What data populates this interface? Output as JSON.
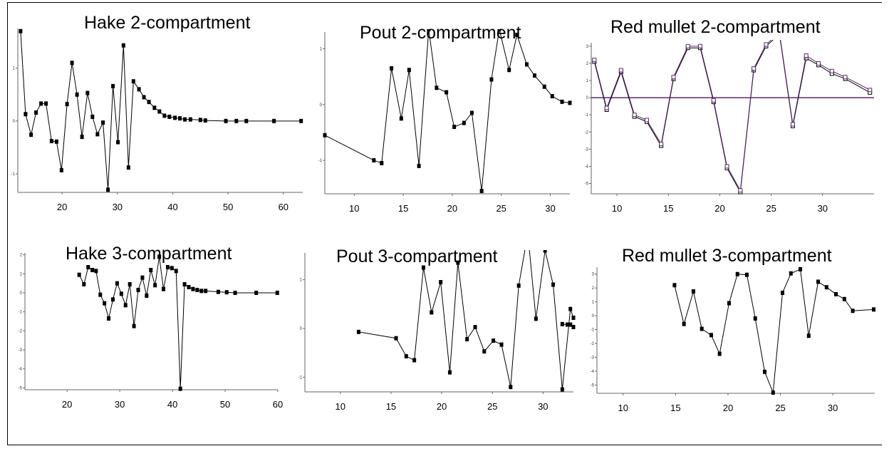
{
  "chart_data": [
    {
      "type": "line",
      "title": "Hake 2-compartment",
      "xticks": [
        20,
        30,
        40,
        50,
        60
      ],
      "yticks": [
        -1,
        0,
        1
      ],
      "xlim": [
        12,
        63.5
      ],
      "ylim": [
        -1.35,
        1.75
      ],
      "marker": "filled-square",
      "series": [
        {
          "x": [
            12.5,
            13.4,
            14.4,
            15.3,
            16.2,
            17.1,
            18.1,
            19.0,
            19.9,
            20.9,
            21.8,
            22.7,
            23.6,
            24.6,
            25.5,
            26.4,
            27.4,
            28.3,
            29.2,
            30.1,
            31.1,
            32.0,
            32.9,
            33.9,
            34.8,
            35.7,
            36.7,
            37.6,
            38.5,
            39.4,
            40.4,
            41.3,
            42.2,
            43.2,
            45.0,
            45.9,
            49.6,
            51.5,
            53.3,
            58.3,
            63.2
          ],
          "y": [
            1.7,
            0.13,
            -0.26,
            0.16,
            0.33,
            0.33,
            -0.38,
            -0.39,
            -0.93,
            0.32,
            1.1,
            0.5,
            -0.3,
            0.53,
            0.08,
            -0.25,
            -0.03,
            -1.3,
            0.66,
            -0.4,
            1.43,
            -0.88,
            0.75,
            0.6,
            0.45,
            0.36,
            0.25,
            0.18,
            0.1,
            0.08,
            0.06,
            0.05,
            0.03,
            0.03,
            0.02,
            0.01,
            0.0,
            0.0,
            0.0,
            0.0,
            0.0
          ]
        }
      ]
    },
    {
      "type": "line",
      "title": "Pout 2-compartment",
      "xticks": [
        10,
        15,
        20,
        25,
        30
      ],
      "yticks": [
        -1,
        0,
        1
      ],
      "xlim": [
        7,
        32
      ],
      "ylim": [
        -1.6,
        1.3
      ],
      "marker": "filled-square",
      "series": [
        {
          "x": [
            7.0,
            12.0,
            12.8,
            13.8,
            14.8,
            15.6,
            16.6,
            17.6,
            18.4,
            19.4,
            20.2,
            21.2,
            22.0,
            23.0,
            24.0,
            24.8,
            25.8,
            26.6,
            27.6,
            28.4,
            29.4,
            30.2,
            31.2,
            32.0
          ],
          "y": [
            -0.55,
            -1.0,
            -1.05,
            0.65,
            -0.25,
            0.62,
            -1.1,
            1.35,
            0.3,
            0.22,
            -0.4,
            -0.33,
            -0.15,
            -1.55,
            0.45,
            1.35,
            0.62,
            1.25,
            0.72,
            0.52,
            0.32,
            0.15,
            0.05,
            0.03
          ]
        }
      ]
    },
    {
      "type": "line",
      "title": "Red mullet 2-compartment",
      "xticks": [
        10,
        15,
        20,
        25,
        30
      ],
      "yticks": [
        -5,
        -4,
        -3,
        -2,
        -1,
        0,
        1,
        2,
        3
      ],
      "xlim": [
        7.5,
        35
      ],
      "ylim": [
        -5.6,
        3.2
      ],
      "marker": "open-square",
      "series": [
        {
          "x": [
            7.8,
            9.0,
            10.4,
            11.7,
            12.9,
            14.3,
            15.5,
            16.9,
            18.1,
            19.4,
            20.7,
            22.0,
            23.3,
            24.5,
            25.8,
            27.1,
            28.4,
            29.6,
            30.9,
            32.2,
            34.6
          ],
          "y": [
            2.1,
            -0.7,
            1.5,
            -1.1,
            -1.4,
            -2.8,
            1.1,
            2.9,
            2.9,
            -0.25,
            -4.1,
            -5.5,
            1.6,
            3.0,
            3.7,
            -1.65,
            2.3,
            1.9,
            1.4,
            1.1,
            0.3
          ]
        },
        {
          "x": [
            7.8,
            9.0,
            10.4,
            11.7,
            12.9,
            14.3,
            15.5,
            16.9,
            18.1,
            19.4,
            20.7,
            22.0,
            23.3,
            24.5,
            25.8,
            27.1,
            28.4,
            29.6,
            30.9,
            32.2,
            34.6
          ],
          "y": [
            2.2,
            -0.6,
            1.6,
            -1.0,
            -1.3,
            -2.7,
            1.2,
            3.0,
            3.0,
            -0.15,
            -4.0,
            -5.4,
            1.7,
            3.1,
            3.8,
            -1.55,
            2.45,
            2.0,
            1.55,
            1.2,
            0.45
          ]
        }
      ],
      "reference_line": 0
    },
    {
      "type": "line",
      "title": "Hake 3-compartment",
      "xticks": [
        20,
        30,
        40,
        50,
        60
      ],
      "yticks": [
        -5,
        -4,
        -3,
        -2,
        -1,
        0,
        1,
        2
      ],
      "xlim": [
        12,
        60
      ],
      "ylim": [
        -5.1,
        2.1
      ],
      "marker": "filled-square",
      "series": [
        {
          "x": [
            22.3,
            23.2,
            24.0,
            24.8,
            25.5,
            26.3,
            27.1,
            27.9,
            28.7,
            29.5,
            30.3,
            31.1,
            31.9,
            32.7,
            33.5,
            34.3,
            35.1,
            35.9,
            36.7,
            37.5,
            38.3,
            39.1,
            39.9,
            40.7,
            41.5,
            42.3,
            43.1,
            43.9,
            44.7,
            45.5,
            46.3,
            48.7,
            50.3,
            51.9,
            55.9,
            59.9
          ],
          "y": [
            0.95,
            0.45,
            1.35,
            1.2,
            1.15,
            -0.1,
            -0.55,
            -1.35,
            -0.35,
            0.5,
            -0.05,
            -0.65,
            0.45,
            -1.75,
            0.15,
            0.8,
            -0.15,
            1.2,
            0.4,
            1.9,
            0.2,
            1.35,
            1.3,
            1.15,
            -5.05,
            0.45,
            0.3,
            0.2,
            0.15,
            0.1,
            0.1,
            0.05,
            0.03,
            0.0,
            0.0,
            0.0
          ]
        }
      ]
    },
    {
      "type": "line",
      "title": "Pout 3-compartment",
      "xticks": [
        10,
        15,
        20,
        25,
        30
      ],
      "yticks": [
        -1,
        0,
        1
      ],
      "xlim": [
        6.5,
        33
      ],
      "ylim": [
        -1.3,
        1.55
      ],
      "marker": "filled-square",
      "series": [
        {
          "x": [
            11.8,
            15.5,
            16.5,
            17.3,
            18.2,
            19.0,
            19.9,
            20.8,
            21.6,
            22.5,
            23.3,
            24.2,
            25.1,
            25.9,
            26.8,
            27.6,
            28.5,
            29.3,
            30.2,
            31.0,
            31.9,
            32.7,
            33.0
          ],
          "y": [
            -0.07,
            -0.2,
            -0.57,
            -0.65,
            1.25,
            0.33,
            0.95,
            -0.9,
            1.35,
            -0.22,
            0.03,
            -0.47,
            -0.25,
            -0.33,
            -1.2,
            0.88,
            1.95,
            0.2,
            1.6,
            0.9,
            -1.25,
            0.4,
            0.22
          ]
        },
        {
          "x": [
            31.9,
            32.4,
            32.7,
            33.0
          ],
          "y": [
            0.09,
            0.08,
            0.08,
            0.03
          ]
        }
      ]
    },
    {
      "type": "line",
      "title": "Red mullet 3-compartment",
      "xticks": [
        10,
        15,
        20,
        25,
        30
      ],
      "yticks": [
        -5,
        -4,
        -3,
        -2,
        -1,
        0,
        1,
        2,
        3
      ],
      "xlim": [
        7.5,
        34
      ],
      "ylim": [
        -5.6,
        3.5
      ],
      "marker": "filled-square",
      "series": [
        {
          "x": [
            14.9,
            15.8,
            16.7,
            17.5,
            18.4,
            19.2,
            20.1,
            20.9,
            21.8,
            22.6,
            23.5,
            24.3,
            25.2,
            26.0,
            26.9,
            27.7,
            28.6,
            29.4,
            30.3,
            31.1,
            31.9,
            33.9
          ],
          "y": [
            2.2,
            -0.6,
            1.75,
            -0.95,
            -1.4,
            -2.75,
            0.9,
            3.0,
            2.95,
            -0.2,
            -4.05,
            -5.55,
            1.65,
            3.05,
            3.35,
            -1.45,
            2.45,
            2.05,
            1.55,
            1.2,
            0.35,
            0.45
          ]
        }
      ]
    }
  ]
}
